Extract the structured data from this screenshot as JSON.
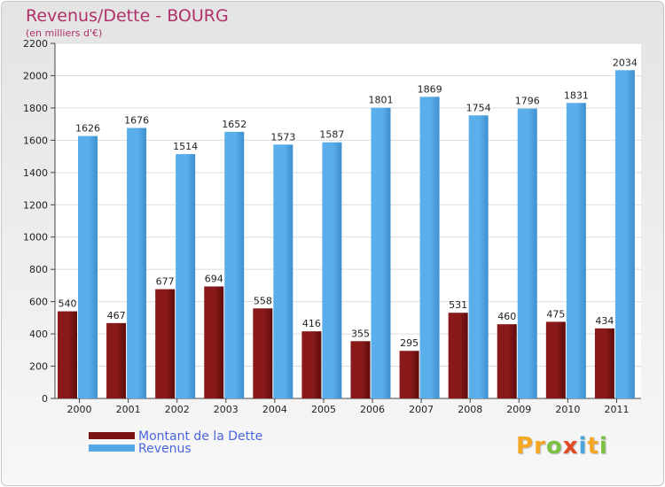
{
  "title": "Revenus/Dette - BOURG",
  "subtitle": "(en milliers d'€)",
  "legend": {
    "debt_label": "Montant de la Dette",
    "revenue_label": "Revenus"
  },
  "logo": {
    "text": "Proxiti",
    "letters": [
      "P",
      "r",
      "o",
      "x",
      "i",
      "t",
      "i"
    ]
  },
  "colors": {
    "debt": "#7a1414",
    "revenue": "#55a8e6",
    "title": "#b0306a",
    "legend_text": "#4a66dd",
    "logo_letters": [
      "#f5a623",
      "#f5a623",
      "#7cc242",
      "#e24a26",
      "#4aa6de",
      "#f5a623",
      "#7cc242"
    ]
  },
  "chart_data": {
    "type": "bar",
    "title": "Revenus/Dette - BOURG",
    "ylabel": "(en milliers d'€)",
    "xlabel": "",
    "categories": [
      "2000",
      "2001",
      "2002",
      "2003",
      "2004",
      "2005",
      "2006",
      "2007",
      "2008",
      "2009",
      "2010",
      "2011"
    ],
    "series": [
      {
        "name": "Montant de la Dette",
        "values": [
          540,
          467,
          677,
          694,
          558,
          416,
          355,
          295,
          531,
          460,
          475,
          434
        ]
      },
      {
        "name": "Revenus",
        "values": [
          1626,
          1676,
          1514,
          1652,
          1573,
          1587,
          1801,
          1869,
          1754,
          1796,
          1831,
          2034
        ]
      }
    ],
    "ylim": [
      0,
      2200
    ],
    "yticks": [
      0,
      200,
      400,
      600,
      800,
      1000,
      1200,
      1400,
      1600,
      1800,
      2000,
      2200
    ],
    "grid": true,
    "legend_position": "bottom-left"
  }
}
